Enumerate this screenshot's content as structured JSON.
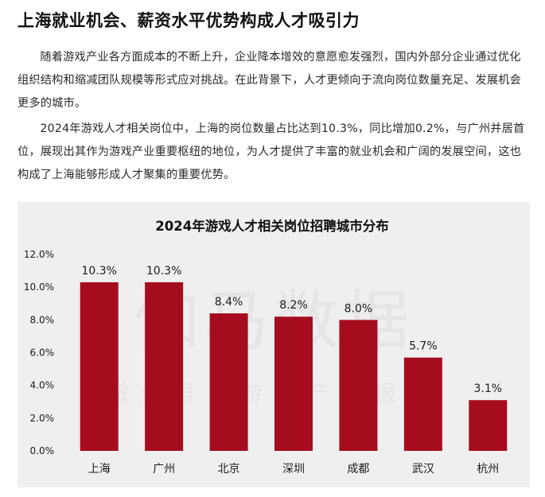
{
  "heading": "上海就业机会、薪资水平优势构成人才吸引力",
  "paragraphs": [
    "随着游戏产业各方面成本的不断上升，企业降本增效的意愿愈发强烈，国内外部分企业通过优化组织结构和缩减团队规模等形式应对挑战。在此背景下，人才更倾向于流向岗位数量充足、发展机会更多的城市。",
    "2024年游戏人才相关岗位中，上海的岗位数量占比达到10.3%，同比增加0.2%，与广州并居首位，展现出其作为游戏产业重要枢纽的地位，为人才提供了丰富的就业机会和广阔的发展空间，这也构成了上海能够形成人才聚集的重要优势。"
  ],
  "watermark": {
    "main": "伽马数据",
    "sub": "微信号：游戏产业报告"
  },
  "colors": {
    "bar": "#a50d1e",
    "panel_bg": "#efefef"
  },
  "chart_data": {
    "type": "bar",
    "title": "2024年游戏人才相关岗位招聘城市分布",
    "categories": [
      "上海",
      "广州",
      "北京",
      "深圳",
      "成都",
      "武汉",
      "杭州"
    ],
    "values": [
      10.3,
      10.3,
      8.4,
      8.2,
      8.0,
      5.7,
      3.1
    ],
    "value_labels": [
      "10.3%",
      "10.3%",
      "8.4%",
      "8.2%",
      "8.0%",
      "5.7%",
      "3.1%"
    ],
    "yticks": [
      0,
      2,
      4,
      6,
      8,
      10,
      12
    ],
    "ytick_labels": [
      "0.0%",
      "2.0%",
      "4.0%",
      "6.0%",
      "8.0%",
      "10.0%",
      "12.0%"
    ],
    "ylim": [
      0,
      12
    ],
    "xlabel": "",
    "ylabel": "",
    "grid": false,
    "legend": "none"
  }
}
